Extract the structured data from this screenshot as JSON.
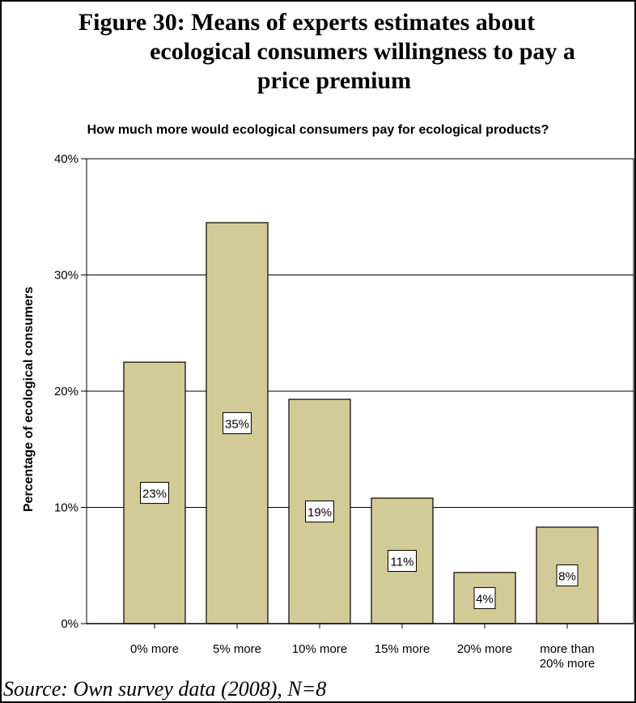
{
  "figure": {
    "title_lines": [
      "Figure 30: Means of experts estimates about",
      "ecological consumers willingness to pay a",
      "price premium"
    ],
    "source": "Source: Own survey data (2008), N=8"
  },
  "colors": {
    "bar_fill": "#d3cb97",
    "bar_stroke": "#000000",
    "grid": "#000000"
  },
  "chart_data": {
    "type": "bar",
    "title": "How much more would ecological consumers pay for ecological products?",
    "xlabel": "",
    "ylabel": "Percentage of ecological consumers",
    "categories": [
      "0% more",
      "5% more",
      "10% more",
      "15% more",
      "20% more",
      "more than 20% more"
    ],
    "category_label_lines": [
      [
        "0% more"
      ],
      [
        "5% more"
      ],
      [
        "10% more"
      ],
      [
        "15% more"
      ],
      [
        "20% more"
      ],
      [
        "more than",
        "20% more"
      ]
    ],
    "values": [
      22.5,
      34.5,
      19.3,
      10.8,
      4.4,
      8.3
    ],
    "data_labels": [
      "23%",
      "35%",
      "19%",
      "11%",
      "4%",
      "8%"
    ],
    "ylim": [
      0,
      40
    ],
    "yticks": [
      0,
      10,
      20,
      30,
      40
    ],
    "ytick_labels": [
      "0%",
      "10%",
      "20%",
      "30%",
      "40%"
    ],
    "grid": true,
    "legend": "none"
  }
}
